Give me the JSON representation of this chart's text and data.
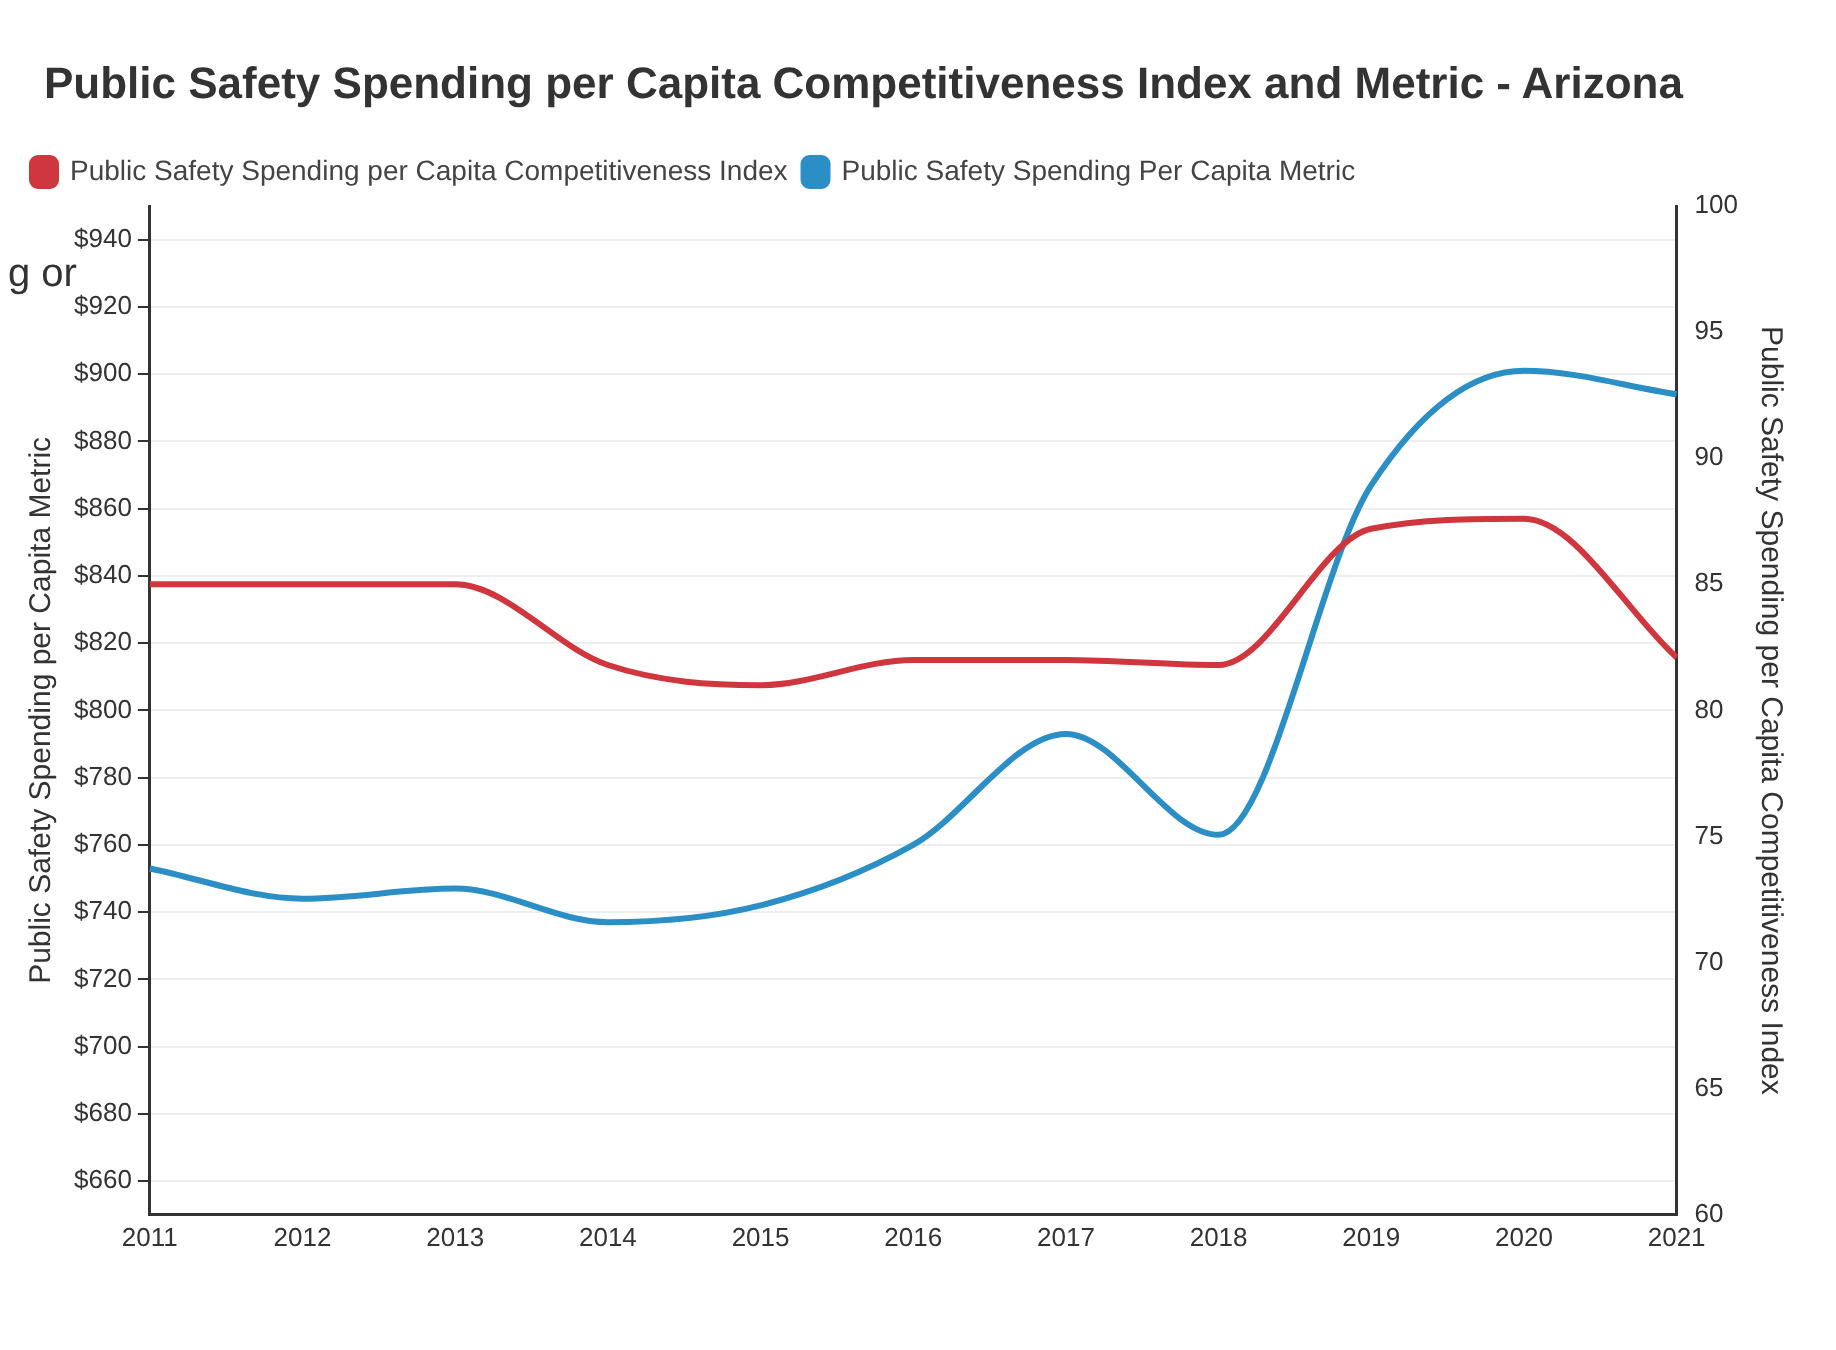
{
  "chart_data": {
    "type": "line",
    "title": "Public Safety Spending per Capita Competitiveness Index and Metric - Arizona",
    "annotations": [
      "g or"
    ],
    "categories": [
      "2011",
      "2012",
      "2013",
      "2014",
      "2015",
      "2016",
      "2017",
      "2018",
      "2019",
      "2020",
      "2021"
    ],
    "ylabel": "Public Safety Spending per Capita Metric",
    "y2label": "Public Safety Spending per Capita Competitiveness Index",
    "series": [
      {
        "name": "Public Safety Spending per Capita Competitiveness Index",
        "color": "#d0363d",
        "axis": "y2",
        "values": [
          85,
          85,
          85,
          81.8,
          81,
          82,
          82,
          81.8,
          87.2,
          87.6,
          82.1
        ]
      },
      {
        "name": "Public Safety Spending Per Capita Metric",
        "color": "#2b8fc6",
        "values": [
          753,
          744,
          747,
          737,
          742,
          760,
          793,
          763,
          867,
          901,
          894
        ]
      }
    ],
    "ylim": [
      650,
      950
    ],
    "yticks": [
      {
        "value": 660,
        "label": "$660"
      },
      {
        "value": 680,
        "label": "$680"
      },
      {
        "value": 700,
        "label": "$700"
      },
      {
        "value": 720,
        "label": "$720"
      },
      {
        "value": 740,
        "label": "$740"
      },
      {
        "value": 760,
        "label": "$760"
      },
      {
        "value": 780,
        "label": "$780"
      },
      {
        "value": 800,
        "label": "$800"
      },
      {
        "value": 820,
        "label": "$820"
      },
      {
        "value": 840,
        "label": "$840"
      },
      {
        "value": 860,
        "label": "$860"
      },
      {
        "value": 880,
        "label": "$880"
      },
      {
        "value": 900,
        "label": "$900"
      },
      {
        "value": 920,
        "label": "$920"
      },
      {
        "value": 940,
        "label": "$940"
      }
    ],
    "y2lim": [
      60,
      100
    ],
    "y2ticks": [
      60,
      65,
      70,
      75,
      80,
      85,
      90,
      95,
      100
    ],
    "grid": "y",
    "legend": "top left",
    "marker": "none",
    "line_style": "solid"
  }
}
